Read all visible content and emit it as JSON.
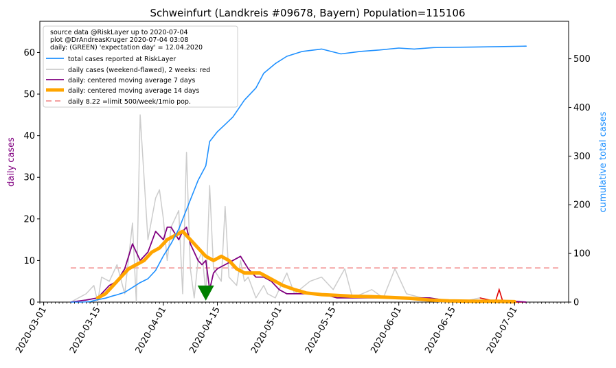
{
  "chart_data": {
    "type": "line",
    "title": "Schweinfurt (Landkreis #09678, Bayern) Population=115106",
    "ylabel_left": "daily cases",
    "ylabel_right": "cumulative total cases",
    "ylabel_left_color": "#800080",
    "ylabel_right_color": "#1e90ff",
    "xlim": [
      "2020-02-29",
      "2020-07-15"
    ],
    "ylim_left": [
      0,
      67.5
    ],
    "ylim_right": [
      0,
      577
    ],
    "x_ticks": [
      "2020-03-01",
      "2020-03-15",
      "2020-04-01",
      "2020-04-15",
      "2020-05-01",
      "2020-05-15",
      "2020-06-01",
      "2020-06-15",
      "2020-07-01"
    ],
    "y_ticks_left": [
      0,
      10,
      20,
      30,
      40,
      50,
      60
    ],
    "y_ticks_right": [
      0,
      100,
      200,
      300,
      400,
      500
    ],
    "legend": {
      "header": [
        "source data @RiskLayer up to 2020-07-04",
        "plot @DrAndreasKruger 2020-07-04 03:08",
        "daily: (GREEN) 'expectation day' = 12.04.2020"
      ],
      "placement": "upper-left",
      "entries": [
        {
          "label": "total cases reported at RiskLayer",
          "color": "#1e90ff",
          "style": "solid"
        },
        {
          "label": "daily cases (weekend-flawed), 2 weeks: red",
          "color": "#cccccc",
          "style": "solid"
        },
        {
          "label": "daily: centered moving average 7 days",
          "color": "#800080",
          "style": "solid"
        },
        {
          "label": "daily: centered moving average 14 days",
          "color": "#ffa500",
          "style": "thick"
        },
        {
          "label": "daily 8.22 =limit 500/week/1mio pop.",
          "color": "#f08080",
          "style": "dashed"
        }
      ]
    },
    "limit_line": {
      "value": 8.22,
      "start": "2020-03-08",
      "end": "2020-07-13"
    },
    "expectation_day": {
      "date": "2020-04-12",
      "value": 2
    },
    "series": [
      {
        "name": "total cases reported at RiskLayer",
        "axis": "right",
        "color": "#1e90ff",
        "x": [
          "2020-03-08",
          "2020-03-11",
          "2020-03-13",
          "2020-03-15",
          "2020-03-17",
          "2020-03-19",
          "2020-03-20",
          "2020-03-22",
          "2020-03-24",
          "2020-03-26",
          "2020-03-28",
          "2020-03-30",
          "2020-04-01",
          "2020-04-03",
          "2020-04-05",
          "2020-04-07",
          "2020-04-08",
          "2020-04-09",
          "2020-04-10",
          "2020-04-12",
          "2020-04-13",
          "2020-04-15",
          "2020-04-17",
          "2020-04-19",
          "2020-04-22",
          "2020-04-25",
          "2020-04-27",
          "2020-04-30",
          "2020-05-03",
          "2020-05-07",
          "2020-05-12",
          "2020-05-17",
          "2020-05-22",
          "2020-05-27",
          "2020-06-01",
          "2020-06-05",
          "2020-06-10",
          "2020-06-20",
          "2020-06-27",
          "2020-07-04"
        ],
        "values": [
          0,
          0,
          1,
          5,
          8,
          13,
          15,
          20,
          30,
          40,
          48,
          65,
          95,
          120,
          150,
          190,
          210,
          230,
          250,
          280,
          330,
          350,
          365,
          380,
          415,
          440,
          470,
          490,
          505,
          515,
          520,
          510,
          515,
          518,
          522,
          520,
          523,
          524,
          525,
          526
        ]
      },
      {
        "name": "daily cases (weekend-flawed), 2 weeks: red",
        "axis": "left",
        "color": "#cccccc",
        "x": [
          "2020-03-08",
          "2020-03-12",
          "2020-03-14",
          "2020-03-15",
          "2020-03-16",
          "2020-03-18",
          "2020-03-20",
          "2020-03-22",
          "2020-03-24",
          "2020-03-25",
          "2020-03-26",
          "2020-03-28",
          "2020-03-29",
          "2020-03-30",
          "2020-03-31",
          "2020-04-01",
          "2020-04-02",
          "2020-04-03",
          "2020-04-05",
          "2020-04-06",
          "2020-04-07",
          "2020-04-08",
          "2020-04-09",
          "2020-04-10",
          "2020-04-11",
          "2020-04-12",
          "2020-04-13",
          "2020-04-14",
          "2020-04-16",
          "2020-04-17",
          "2020-04-18",
          "2020-04-20",
          "2020-04-21",
          "2020-04-22",
          "2020-04-23",
          "2020-04-25",
          "2020-04-27",
          "2020-04-28",
          "2020-04-30",
          "2020-05-03",
          "2020-05-05",
          "2020-05-09",
          "2020-05-12",
          "2020-05-15",
          "2020-05-18",
          "2020-05-20",
          "2020-05-25",
          "2020-05-28",
          "2020-05-31",
          "2020-06-03",
          "2020-06-07",
          "2020-06-12",
          "2020-06-17",
          "2020-06-22",
          "2020-06-27",
          "2020-07-01",
          "2020-07-04"
        ],
        "values": [
          0,
          2,
          4,
          0,
          6,
          5,
          9,
          2,
          19,
          0,
          45,
          15,
          20,
          25,
          27,
          20,
          10,
          18,
          22,
          2,
          36,
          8,
          1,
          10,
          12,
          2,
          28,
          8,
          5,
          23,
          6,
          4,
          10,
          5,
          6,
          1,
          4,
          2,
          1,
          7,
          2,
          5,
          6,
          3,
          8,
          1,
          3,
          1,
          8,
          2,
          1,
          0,
          0,
          1,
          0,
          0,
          0
        ]
      },
      {
        "name": "daily: centered moving average 7 days",
        "axis": "left",
        "color": "#800080",
        "x": [
          "2020-03-08",
          "2020-03-12",
          "2020-03-15",
          "2020-03-18",
          "2020-03-20",
          "2020-03-22",
          "2020-03-24",
          "2020-03-26",
          "2020-03-28",
          "2020-03-30",
          "2020-04-01",
          "2020-04-02",
          "2020-04-03",
          "2020-04-05",
          "2020-04-06",
          "2020-04-07",
          "2020-04-08",
          "2020-04-09",
          "2020-04-10",
          "2020-04-11",
          "2020-04-12",
          "2020-04-13",
          "2020-04-14",
          "2020-04-15",
          "2020-04-17",
          "2020-04-19",
          "2020-04-21",
          "2020-04-23",
          "2020-04-25",
          "2020-04-27",
          "2020-04-29",
          "2020-05-01",
          "2020-05-03",
          "2020-05-05",
          "2020-05-08",
          "2020-05-12",
          "2020-05-16",
          "2020-05-20",
          "2020-05-25",
          "2020-05-30",
          "2020-06-04",
          "2020-06-09",
          "2020-06-14",
          "2020-06-20",
          "2020-06-26",
          "2020-07-01",
          "2020-07-04"
        ],
        "values": [
          0,
          0.5,
          1,
          4,
          5,
          8,
          14,
          10,
          12,
          17,
          15,
          18,
          18,
          15,
          17,
          18,
          14,
          12,
          10,
          9,
          10,
          3,
          7,
          8,
          9,
          10,
          11,
          8,
          6,
          6,
          5,
          3,
          2,
          2,
          2,
          2,
          1,
          1,
          1,
          1,
          1,
          1,
          0.3,
          0.2,
          0.2,
          0.2,
          0
        ]
      },
      {
        "name": "daily: centered moving average 14 days",
        "axis": "left",
        "color": "#ffa500",
        "x": [
          "2020-03-15",
          "2020-03-17",
          "2020-03-19",
          "2020-03-21",
          "2020-03-23",
          "2020-03-25",
          "2020-03-27",
          "2020-03-29",
          "2020-03-31",
          "2020-04-02",
          "2020-04-04",
          "2020-04-06",
          "2020-04-08",
          "2020-04-10",
          "2020-04-12",
          "2020-04-14",
          "2020-04-16",
          "2020-04-18",
          "2020-04-20",
          "2020-04-22",
          "2020-04-24",
          "2020-04-26",
          "2020-04-28",
          "2020-04-30",
          "2020-05-02",
          "2020-05-05",
          "2020-05-08",
          "2020-05-12",
          "2020-05-16",
          "2020-05-20",
          "2020-05-25",
          "2020-05-30",
          "2020-06-04",
          "2020-06-09",
          "2020-06-14",
          "2020-06-20",
          "2020-06-26",
          "2020-07-01"
        ],
        "values": [
          1,
          2,
          4,
          6,
          8,
          9,
          10,
          12,
          13,
          15,
          16,
          17,
          15,
          13,
          11,
          10,
          11,
          10,
          8,
          7,
          7,
          7,
          6,
          5,
          4,
          3,
          2.2,
          1.8,
          1.6,
          1.4,
          1.3,
          1.1,
          0.9,
          0.5,
          0.3,
          0.2,
          0.2,
          0.1
        ]
      }
    ]
  }
}
